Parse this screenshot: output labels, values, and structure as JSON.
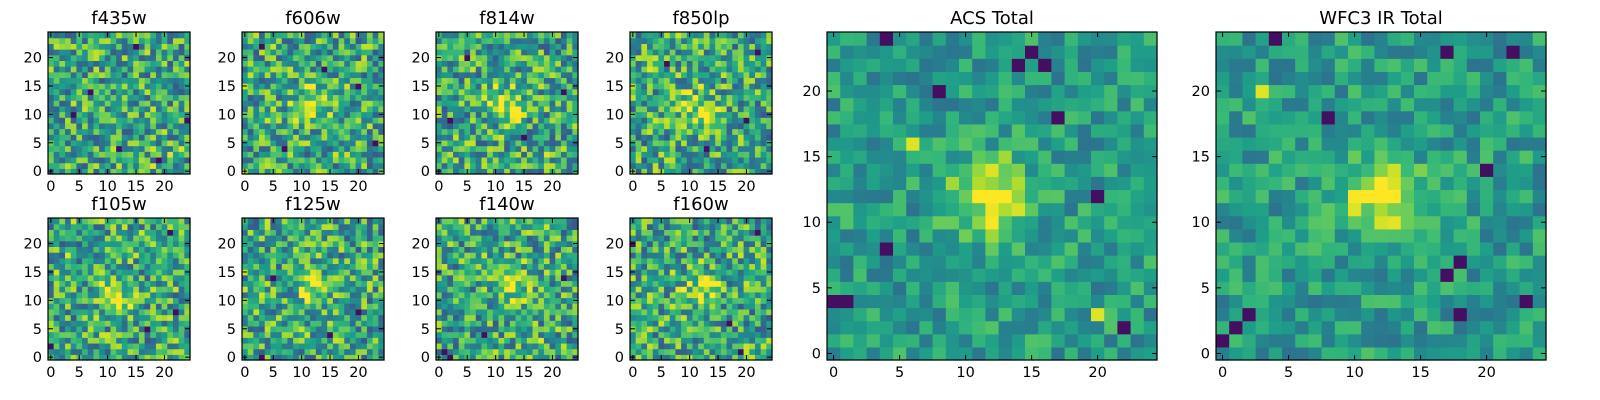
{
  "chart_data": [
    {
      "type": "heatmap",
      "title": "f435w",
      "xticks": [
        0,
        5,
        10,
        15,
        20
      ],
      "yticks": [
        0,
        5,
        10,
        15,
        20
      ],
      "xlim": [
        0,
        24
      ],
      "ylim": [
        0,
        24
      ],
      "grid_size": 25,
      "colormap": "viridis",
      "features": {
        "bright_center": null,
        "bright_spots": [
          [
            21,
            3
          ],
          [
            23,
            4
          ],
          [
            18,
            1
          ]
        ],
        "dark_spots": [
          [
            4,
            10
          ],
          [
            15,
            22
          ],
          [
            19,
            2
          ],
          [
            7,
            14
          ],
          [
            12,
            4
          ],
          [
            24,
            9
          ]
        ]
      }
    },
    {
      "type": "heatmap",
      "title": "f606w",
      "xticks": [
        0,
        5,
        10,
        15,
        20
      ],
      "yticks": [
        0,
        5,
        10,
        15,
        20
      ],
      "xlim": [
        0,
        24
      ],
      "ylim": [
        0,
        24
      ],
      "grid_size": 25,
      "colormap": "viridis",
      "features": {
        "bright_center": [
          12,
          12
        ],
        "bright_spots": [],
        "dark_spots": [
          [
            3,
            22
          ],
          [
            20,
            15
          ],
          [
            7,
            4
          ],
          [
            23,
            5
          ],
          [
            14,
            18
          ]
        ]
      }
    },
    {
      "type": "heatmap",
      "title": "f814w",
      "xticks": [
        0,
        5,
        10,
        15,
        20
      ],
      "yticks": [
        0,
        5,
        10,
        15,
        20
      ],
      "xlim": [
        0,
        24
      ],
      "ylim": [
        0,
        24
      ],
      "grid_size": 25,
      "colormap": "viridis",
      "features": {
        "bright_center": [
          12,
          12
        ],
        "bright_spots": [
          [
            19,
            3
          ]
        ],
        "dark_spots": [
          [
            22,
            14
          ],
          [
            5,
            20
          ],
          [
            15,
            6
          ],
          [
            2,
            9
          ]
        ]
      }
    },
    {
      "type": "heatmap",
      "title": "f850lp",
      "xticks": [
        0,
        5,
        10,
        15,
        20
      ],
      "yticks": [
        0,
        5,
        10,
        15,
        20
      ],
      "xlim": [
        0,
        24
      ],
      "ylim": [
        0,
        24
      ],
      "grid_size": 25,
      "colormap": "viridis",
      "features": {
        "bright_center": [
          11,
          11
        ],
        "bright_spots": [
          [
            3,
            18
          ]
        ],
        "dark_spots": [
          [
            6,
            19
          ],
          [
            20,
            9
          ],
          [
            13,
            4
          ],
          [
            22,
            21
          ]
        ]
      }
    },
    {
      "type": "heatmap",
      "title": "f105w",
      "xticks": [
        0,
        5,
        10,
        15,
        20
      ],
      "yticks": [
        0,
        5,
        10,
        15,
        20
      ],
      "xlim": [
        0,
        24
      ],
      "ylim": [
        0,
        24
      ],
      "grid_size": 25,
      "colormap": "viridis",
      "features": {
        "bright_center": [
          11,
          11
        ],
        "bright_spots": [
          [
            3,
            18
          ]
        ],
        "dark_spots": [
          [
            21,
            22
          ],
          [
            0,
            2
          ],
          [
            22,
            8
          ],
          [
            17,
            5
          ]
        ]
      }
    },
    {
      "type": "heatmap",
      "title": "f125w",
      "xticks": [
        0,
        5,
        10,
        15,
        20
      ],
      "yticks": [
        0,
        5,
        10,
        15,
        20
      ],
      "xlim": [
        0,
        24
      ],
      "ylim": [
        0,
        24
      ],
      "grid_size": 25,
      "colormap": "viridis",
      "features": {
        "bright_center": [
          12,
          12
        ],
        "bright_spots": [],
        "dark_spots": [
          [
            3,
            0
          ],
          [
            20,
            8
          ],
          [
            15,
            4
          ],
          [
            5,
            14
          ]
        ]
      }
    },
    {
      "type": "heatmap",
      "title": "f140w",
      "xticks": [
        0,
        5,
        10,
        15,
        20
      ],
      "yticks": [
        0,
        5,
        10,
        15,
        20
      ],
      "xlim": [
        0,
        24
      ],
      "ylim": [
        0,
        24
      ],
      "grid_size": 25,
      "colormap": "viridis",
      "features": {
        "bright_center": [
          13,
          13
        ],
        "bright_spots": [
          [
            18,
            3
          ]
        ],
        "dark_spots": [
          [
            1,
            1
          ],
          [
            2,
            0
          ],
          [
            8,
            4
          ],
          [
            22,
            14
          ]
        ]
      }
    },
    {
      "type": "heatmap",
      "title": "f160w",
      "xticks": [
        0,
        5,
        10,
        15,
        20
      ],
      "yticks": [
        0,
        5,
        10,
        15,
        20
      ],
      "xlim": [
        0,
        24
      ],
      "ylim": [
        0,
        24
      ],
      "grid_size": 25,
      "colormap": "viridis",
      "features": {
        "bright_center": [
          12,
          12
        ],
        "bright_spots": [],
        "dark_spots": [
          [
            0,
            20
          ],
          [
            22,
            22
          ],
          [
            19,
            1
          ],
          [
            17,
            6
          ]
        ]
      }
    },
    {
      "type": "heatmap",
      "title": "ACS Total",
      "xticks": [
        0,
        5,
        10,
        15,
        20
      ],
      "yticks": [
        0,
        5,
        10,
        15,
        20
      ],
      "xlim": [
        0,
        24
      ],
      "ylim": [
        0,
        24
      ],
      "grid_size": 25,
      "colormap": "viridis",
      "features": {
        "bright_center": [
          12,
          12
        ],
        "bright_spots": [
          [
            6,
            16
          ],
          [
            20,
            3
          ]
        ],
        "dark_spots": [
          [
            4,
            24
          ],
          [
            14,
            22
          ],
          [
            15,
            23
          ],
          [
            16,
            22
          ],
          [
            8,
            20
          ],
          [
            20,
            12
          ],
          [
            1,
            4
          ],
          [
            0,
            4
          ],
          [
            22,
            2
          ],
          [
            4,
            8
          ],
          [
            17,
            18
          ]
        ]
      }
    },
    {
      "type": "heatmap",
      "title": "WFC3 IR Total",
      "xticks": [
        0,
        5,
        10,
        15,
        20
      ],
      "yticks": [
        0,
        5,
        10,
        15,
        20
      ],
      "xlim": [
        0,
        24
      ],
      "ylim": [
        0,
        24
      ],
      "grid_size": 25,
      "colormap": "viridis",
      "features": {
        "bright_center": [
          12,
          12
        ],
        "bright_spots": [
          [
            3,
            20
          ]
        ],
        "dark_spots": [
          [
            4,
            24
          ],
          [
            17,
            23
          ],
          [
            22,
            23
          ],
          [
            8,
            18
          ],
          [
            20,
            14
          ],
          [
            1,
            2
          ],
          [
            0,
            1
          ],
          [
            2,
            3
          ],
          [
            17,
            6
          ],
          [
            18,
            7
          ],
          [
            23,
            4
          ],
          [
            18,
            3
          ]
        ]
      }
    }
  ]
}
